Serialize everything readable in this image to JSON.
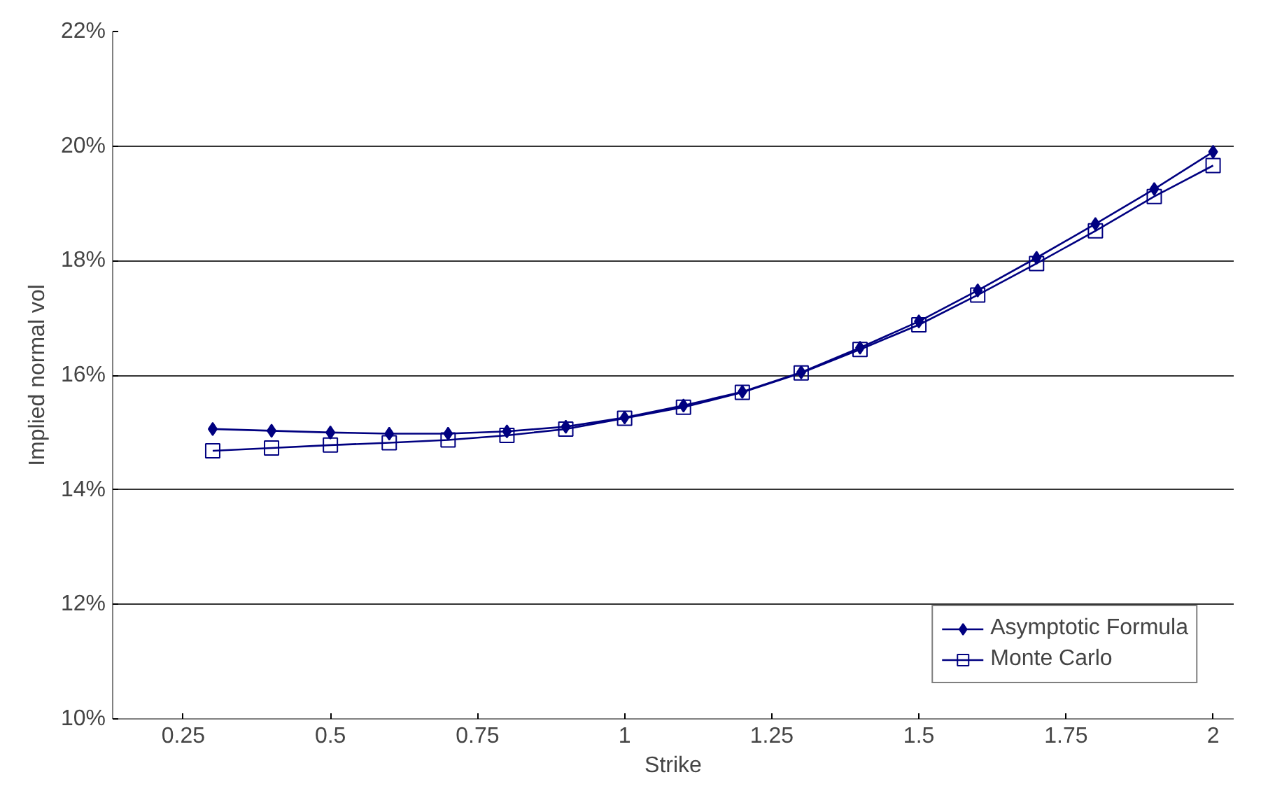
{
  "chart_data": {
    "type": "line",
    "xlabel": "Strike",
    "ylabel": "Implied normal vol",
    "x": [
      0.3,
      0.4,
      0.5,
      0.6,
      0.7,
      0.8,
      0.9,
      1.0,
      1.1,
      1.2,
      1.3,
      1.4,
      1.5,
      1.6,
      1.7,
      1.8,
      1.9,
      2.0
    ],
    "series": [
      {
        "name": "Asymptotic Formula",
        "color": "#000080",
        "marker": "diamond",
        "values": [
          15.06,
          15.03,
          15.0,
          14.98,
          14.98,
          15.02,
          15.1,
          15.26,
          15.47,
          15.71,
          16.05,
          16.48,
          16.94,
          17.48,
          18.05,
          18.64,
          19.25,
          19.9
        ]
      },
      {
        "name": "Monte Carlo",
        "color": "#000080",
        "marker": "square",
        "values": [
          14.68,
          14.73,
          14.78,
          14.82,
          14.87,
          14.95,
          15.06,
          15.25,
          15.44,
          15.7,
          16.04,
          16.45,
          16.88,
          17.4,
          17.95,
          18.52,
          19.12,
          19.66
        ]
      }
    ],
    "xlim": [
      0.13,
      2.035
    ],
    "ylim": [
      10,
      22
    ],
    "xticks": [
      0.25,
      0.5,
      0.75,
      1,
      1.25,
      1.5,
      1.75,
      2
    ],
    "yticks": [
      {
        "value": 10,
        "label": "10%"
      },
      {
        "value": 12,
        "label": "12%"
      },
      {
        "value": 14,
        "label": "14%"
      },
      {
        "value": 16,
        "label": "16%"
      },
      {
        "value": 18,
        "label": "18%"
      },
      {
        "value": 20,
        "label": "20%"
      },
      {
        "value": 22,
        "label": "22%"
      }
    ],
    "grid": "y",
    "legend": "bottom right",
    "line_style": "solid"
  }
}
